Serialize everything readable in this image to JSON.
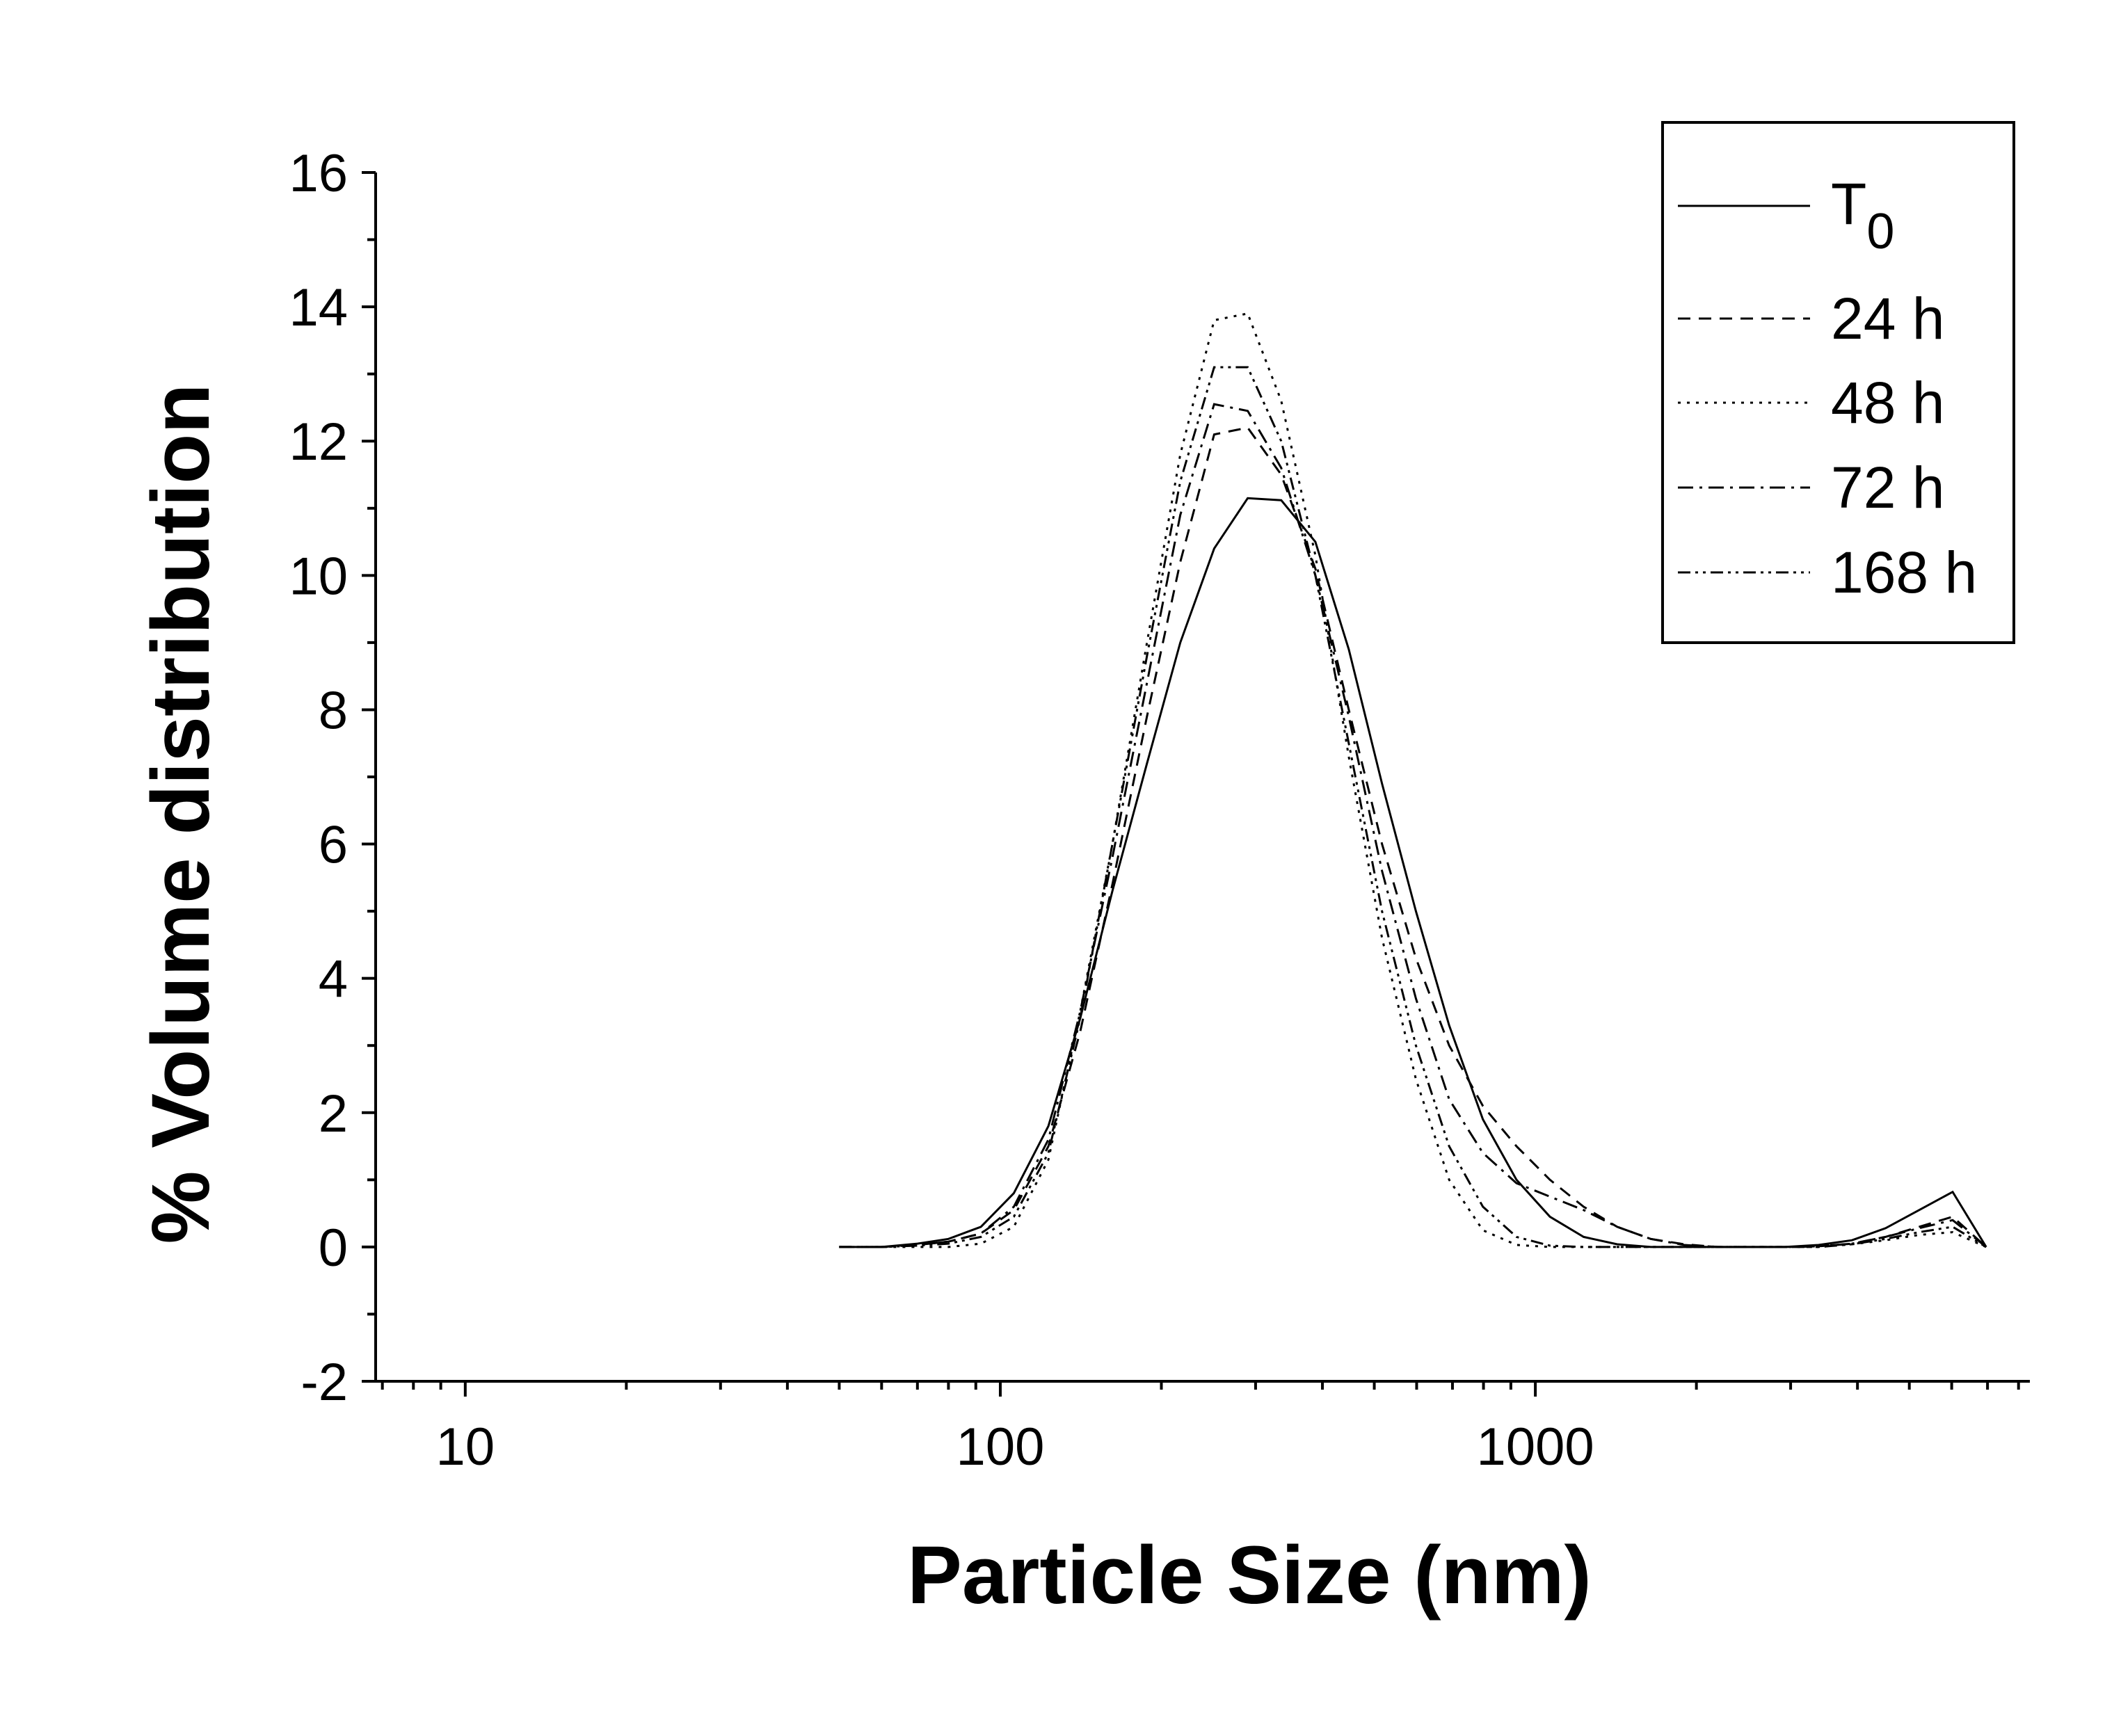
{
  "chart_data": {
    "type": "line",
    "xlabel": "Particle Size (nm)",
    "ylabel": "% Volume distribution",
    "x_scale": "log",
    "xlim": [
      6.8,
      8400
    ],
    "ylim": [
      -2,
      16
    ],
    "x_tick_labels": [
      "10",
      "100",
      "1000"
    ],
    "y_tick_labels": [
      "-2",
      "0",
      "2",
      "4",
      "6",
      "8",
      "10",
      "12",
      "14",
      "16"
    ],
    "legend_position": "top-right",
    "legend": {
      "t0_base": "T",
      "t0_sub": "0",
      "s24": "24 h",
      "s48": "48 h",
      "s72": "72 h",
      "s168": "168 h"
    },
    "series": [
      {
        "name": "T0",
        "style": "solid",
        "points": [
          [
            50,
            0
          ],
          [
            60,
            0
          ],
          [
            70,
            0.05
          ],
          [
            80,
            0.12
          ],
          [
            92,
            0.3
          ],
          [
            106,
            0.8
          ],
          [
            123,
            1.8
          ],
          [
            141,
            3.4
          ],
          [
            162,
            5.3
          ],
          [
            188,
            7.2
          ],
          [
            217,
            9.0
          ],
          [
            251,
            10.4
          ],
          [
            290,
            11.15
          ],
          [
            335,
            11.12
          ],
          [
            388,
            10.5
          ],
          [
            448,
            8.9
          ],
          [
            517,
            6.9
          ],
          [
            598,
            5.0
          ],
          [
            690,
            3.3
          ],
          [
            798,
            1.9
          ],
          [
            922,
            1.0
          ],
          [
            1065,
            0.45
          ],
          [
            1231,
            0.15
          ],
          [
            1422,
            0.04
          ],
          [
            1643,
            0
          ],
          [
            1898,
            0
          ],
          [
            2193,
            0
          ],
          [
            2534,
            0
          ],
          [
            2928,
            0
          ],
          [
            3382,
            0.03
          ],
          [
            3907,
            0.1
          ],
          [
            4514,
            0.28
          ],
          [
            5215,
            0.55
          ],
          [
            6025,
            0.82
          ],
          [
            6960,
            0
          ]
        ]
      },
      {
        "name": "24 h",
        "style": "dashed",
        "points": [
          [
            50,
            0
          ],
          [
            60,
            0
          ],
          [
            70,
            0.03
          ],
          [
            80,
            0.08
          ],
          [
            92,
            0.2
          ],
          [
            106,
            0.55
          ],
          [
            123,
            1.5
          ],
          [
            141,
            3.2
          ],
          [
            162,
            5.4
          ],
          [
            188,
            7.9
          ],
          [
            217,
            10.2
          ],
          [
            251,
            12.1
          ],
          [
            290,
            12.2
          ],
          [
            335,
            11.5
          ],
          [
            388,
            10.1
          ],
          [
            448,
            8.0
          ],
          [
            517,
            6.0
          ],
          [
            598,
            4.3
          ],
          [
            690,
            3.0
          ],
          [
            798,
            2.1
          ],
          [
            922,
            1.5
          ],
          [
            1065,
            1.0
          ],
          [
            1231,
            0.6
          ],
          [
            1422,
            0.3
          ],
          [
            1643,
            0.12
          ],
          [
            1898,
            0.04
          ],
          [
            2193,
            0
          ],
          [
            2534,
            0
          ],
          [
            2928,
            0
          ],
          [
            3382,
            0.01
          ],
          [
            3907,
            0.05
          ],
          [
            4514,
            0.15
          ],
          [
            5215,
            0.3
          ],
          [
            6025,
            0.45
          ],
          [
            6960,
            0
          ]
        ]
      },
      {
        "name": "48 h",
        "style": "dotted",
        "points": [
          [
            50,
            0
          ],
          [
            60,
            0
          ],
          [
            70,
            0
          ],
          [
            80,
            0
          ],
          [
            92,
            0.05
          ],
          [
            106,
            0.3
          ],
          [
            123,
            1.3
          ],
          [
            141,
            3.5
          ],
          [
            162,
            6.0
          ],
          [
            188,
            9.0
          ],
          [
            217,
            11.8
          ],
          [
            251,
            13.8
          ],
          [
            290,
            13.9
          ],
          [
            335,
            12.6
          ],
          [
            388,
            10.3
          ],
          [
            448,
            7.3
          ],
          [
            517,
            4.6
          ],
          [
            598,
            2.5
          ],
          [
            690,
            1.0
          ],
          [
            798,
            0.25
          ],
          [
            922,
            0.03
          ],
          [
            1065,
            0
          ],
          [
            1231,
            0
          ],
          [
            1422,
            0
          ],
          [
            1643,
            0
          ],
          [
            1898,
            0
          ],
          [
            2193,
            0
          ],
          [
            2534,
            0
          ],
          [
            2928,
            0
          ],
          [
            3382,
            0
          ],
          [
            3907,
            0.04
          ],
          [
            4514,
            0.1
          ],
          [
            5215,
            0.18
          ],
          [
            6025,
            0.22
          ],
          [
            6960,
            0
          ]
        ]
      },
      {
        "name": "72 h",
        "style": "dashdot",
        "points": [
          [
            50,
            0
          ],
          [
            60,
            0
          ],
          [
            70,
            0.03
          ],
          [
            80,
            0.08
          ],
          [
            92,
            0.2
          ],
          [
            106,
            0.6
          ],
          [
            123,
            1.6
          ],
          [
            141,
            3.5
          ],
          [
            162,
            5.8
          ],
          [
            188,
            8.4
          ],
          [
            217,
            10.9
          ],
          [
            251,
            12.55
          ],
          [
            290,
            12.45
          ],
          [
            335,
            11.6
          ],
          [
            388,
            10.0
          ],
          [
            448,
            7.9
          ],
          [
            517,
            5.6
          ],
          [
            598,
            3.7
          ],
          [
            690,
            2.2
          ],
          [
            798,
            1.4
          ],
          [
            922,
            0.95
          ],
          [
            1065,
            0.75
          ],
          [
            1231,
            0.55
          ],
          [
            1422,
            0.3
          ],
          [
            1643,
            0.12
          ],
          [
            1898,
            0.03
          ],
          [
            2193,
            0
          ],
          [
            2534,
            0
          ],
          [
            2928,
            0
          ],
          [
            3382,
            0.01
          ],
          [
            3907,
            0.05
          ],
          [
            4514,
            0.15
          ],
          [
            5215,
            0.28
          ],
          [
            6025,
            0.4
          ],
          [
            6960,
            0
          ]
        ]
      },
      {
        "name": "168 h",
        "style": "dashdotdot",
        "points": [
          [
            50,
            0
          ],
          [
            60,
            0
          ],
          [
            70,
            0.02
          ],
          [
            80,
            0.05
          ],
          [
            92,
            0.15
          ],
          [
            106,
            0.45
          ],
          [
            123,
            1.4
          ],
          [
            141,
            3.4
          ],
          [
            162,
            6.0
          ],
          [
            188,
            8.8
          ],
          [
            217,
            11.4
          ],
          [
            251,
            13.1
          ],
          [
            290,
            13.1
          ],
          [
            335,
            12.0
          ],
          [
            388,
            10.0
          ],
          [
            448,
            7.5
          ],
          [
            517,
            5.0
          ],
          [
            598,
            3.0
          ],
          [
            690,
            1.5
          ],
          [
            798,
            0.6
          ],
          [
            922,
            0.15
          ],
          [
            1065,
            0.02
          ],
          [
            1231,
            0
          ],
          [
            1422,
            0
          ],
          [
            1643,
            0
          ],
          [
            1898,
            0
          ],
          [
            2193,
            0
          ],
          [
            2534,
            0
          ],
          [
            2928,
            0
          ],
          [
            3382,
            0
          ],
          [
            3907,
            0.04
          ],
          [
            4514,
            0.12
          ],
          [
            5215,
            0.22
          ],
          [
            6025,
            0.3
          ],
          [
            6960,
            0
          ]
        ]
      }
    ]
  }
}
